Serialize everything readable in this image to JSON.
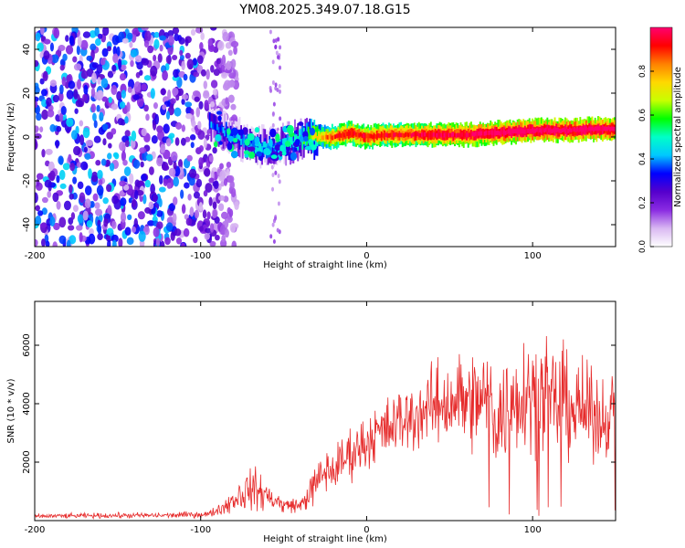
{
  "title": "YM08.2025.349.07.18.G15",
  "chart_data": [
    {
      "type": "heatmap",
      "title": "YM08.2025.349.07.18.G15",
      "xlabel": "Height of straight line (km)",
      "ylabel": "Frequency (Hz)",
      "xlim": [
        -200,
        150
      ],
      "ylim": [
        -50,
        50
      ],
      "xticks": [
        -200,
        -100,
        0,
        100
      ],
      "xtick_labels": [
        "-200",
        "-100",
        "0",
        "100"
      ],
      "yticks": [
        -40,
        -20,
        0,
        20,
        40
      ],
      "ytick_labels": [
        "-40",
        "-20",
        "0",
        "20",
        "40"
      ],
      "colorbar": {
        "label": "Normalized spectral amplitude",
        "range": [
          0.0,
          1.0
        ],
        "ticks": [
          0.0,
          0.2,
          0.4,
          0.6,
          0.8
        ],
        "tick_labels": [
          "0.0",
          "0.2",
          "0.4",
          "0.6",
          "0.8"
        ],
        "colormap": [
          "#ffffff",
          "#d9b8f2",
          "#8a2be2",
          "#5500cc",
          "#0000ff",
          "#00c8ff",
          "#00ffc8",
          "#00ff00",
          "#c8ff00",
          "#ffd800",
          "#ff8000",
          "#ff0000",
          "#ff0070"
        ]
      },
      "ridge": {
        "x": [
          -95,
          -90,
          -85,
          -80,
          -75,
          -70,
          -65,
          -60,
          -55,
          -50,
          -45,
          -40,
          -35,
          -30,
          -25,
          -20,
          -15,
          -10,
          -5,
          0,
          10,
          20,
          40,
          60,
          80,
          100,
          120,
          150
        ],
        "frequency": [
          6,
          4,
          2,
          0,
          -2,
          -3,
          -4,
          -5,
          -4,
          -3,
          -2,
          -1,
          0,
          0,
          0,
          0,
          1,
          2,
          1,
          0,
          1,
          1,
          1,
          1,
          2,
          3,
          3,
          4
        ],
        "amplitude": [
          0.3,
          0.3,
          0.3,
          0.3,
          0.35,
          0.35,
          0.35,
          0.35,
          0.35,
          0.4,
          0.4,
          0.45,
          0.55,
          0.65,
          0.75,
          0.8,
          0.85,
          0.85,
          0.85,
          0.85,
          0.85,
          0.85,
          0.9,
          0.9,
          0.95,
          0.95,
          0.95,
          0.95
        ]
      },
      "noise_region": {
        "x_range": [
          -200,
          -88
        ],
        "frequency_range": [
          -50,
          50
        ],
        "amplitude": 0.2
      }
    },
    {
      "type": "line",
      "xlabel": "Height of straight line (km)",
      "ylabel": "SNR (10 * v/v)",
      "xlim": [
        -200,
        150
      ],
      "ylim": [
        0,
        7500
      ],
      "xticks": [
        -200,
        -100,
        0,
        100
      ],
      "xtick_labels": [
        "-200",
        "-100",
        "0",
        "100"
      ],
      "yticks": [
        2000,
        4000,
        6000
      ],
      "ytick_labels": [
        "2000",
        "4000",
        "6000"
      ],
      "color": "#e62b2b",
      "envelope": {
        "x": [
          -200,
          -160,
          -120,
          -95,
          -85,
          -80,
          -75,
          -70,
          -65,
          -60,
          -55,
          -50,
          -45,
          -40,
          -35,
          -30,
          -25,
          -20,
          -15,
          -10,
          -5,
          0,
          5,
          10,
          15,
          20,
          25,
          30,
          35,
          40,
          45,
          50,
          55,
          60,
          65,
          70,
          75,
          80,
          85,
          90,
          95,
          100,
          105,
          110,
          115,
          120,
          125,
          130,
          135,
          140,
          145,
          150
        ],
        "mean": [
          150,
          170,
          180,
          220,
          500,
          750,
          900,
          1100,
          1000,
          850,
          700,
          500,
          550,
          500,
          900,
          1300,
          1700,
          1700,
          2000,
          2300,
          2500,
          2700,
          3000,
          3000,
          3200,
          3400,
          3500,
          3600,
          3800,
          3900,
          4000,
          4100,
          4200,
          4000,
          3800,
          4200,
          4000,
          3500,
          3800,
          4300,
          4500,
          4400,
          4300,
          4100,
          4000,
          4200,
          3800,
          3800,
          3600,
          3500,
          3600,
          3900
        ],
        "amplitude": [
          100,
          120,
          130,
          150,
          350,
          650,
          800,
          900,
          900,
          700,
          500,
          350,
          350,
          300,
          700,
          900,
          1000,
          1100,
          1100,
          1200,
          1200,
          1300,
          1300,
          1400,
          1500,
          1500,
          1500,
          1600,
          1600,
          1800,
          2000,
          2100,
          2200,
          2300,
          2500,
          2300,
          2300,
          2500,
          2500,
          2600,
          2700,
          2600,
          2500,
          2400,
          2500,
          2500,
          2400,
          2200,
          2000,
          1900,
          1800,
          1600
        ]
      }
    }
  ]
}
